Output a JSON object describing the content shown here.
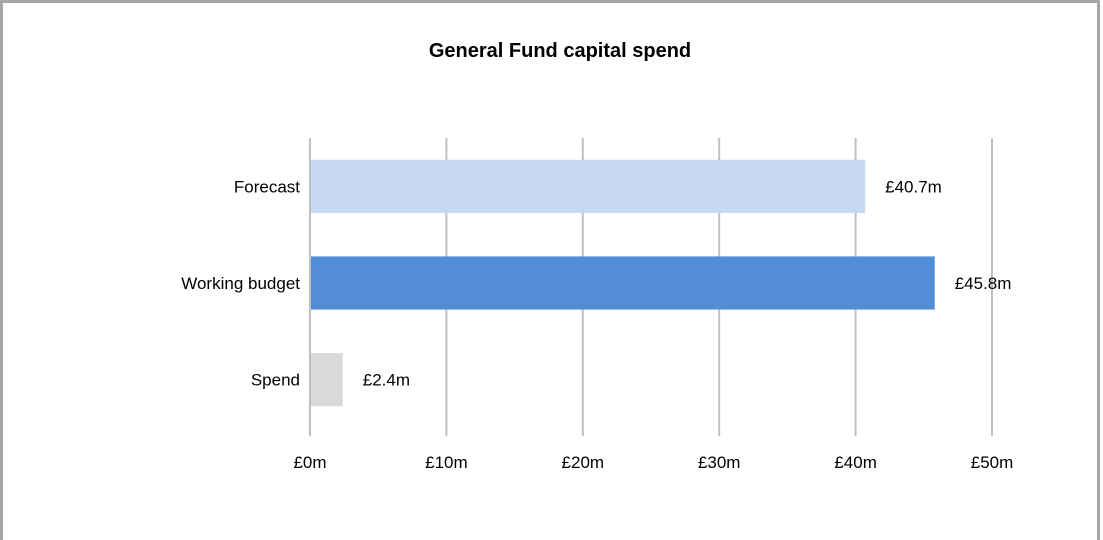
{
  "chart_data": {
    "type": "bar",
    "orientation": "horizontal",
    "title": "General Fund capital spend",
    "xlabel": "",
    "ylabel": "",
    "categories": [
      "Forecast",
      "Working budget",
      "Spend"
    ],
    "values": [
      40.7,
      45.8,
      2.4
    ],
    "data_labels": [
      "£40.7m",
      "£45.8m",
      "£2.4m"
    ],
    "colors": [
      "#c6d9f1",
      "#538dd5",
      "#d9d9d9"
    ],
    "xlim": [
      0,
      50
    ],
    "ticks": [
      0,
      10,
      20,
      30,
      40,
      50
    ],
    "tick_labels": [
      "£0m",
      "£10m",
      "£20m",
      "£30m",
      "£40m",
      "£50m"
    ],
    "grid": true,
    "grid_color": "#bfbfbf",
    "legend": "none"
  }
}
